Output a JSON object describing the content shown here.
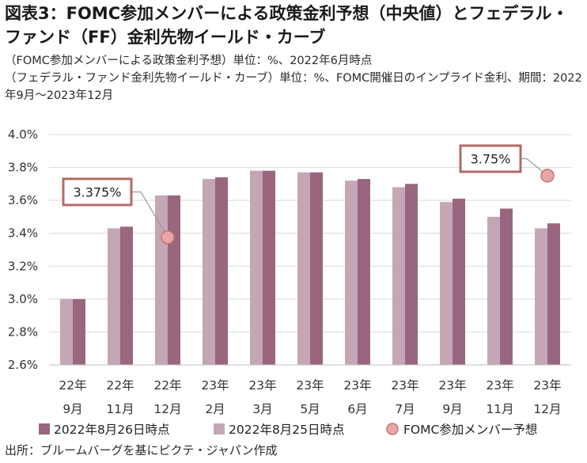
{
  "title": "図表3：FOMC参加メンバーによる政策金利予想（中央値）とフェデラル・ファンド（FF）金利先物イールド・カーブ",
  "subtitle_line1": "（FOMC参加メンバーによる政策金利予想）単位：%、2022年6月時点",
  "subtitle_line2": "（フェデラル・ファンド金利先物イールド・カーブ）単位：%、FOMC開催日のインプライド金利、期間：2022年9月～2023年12月",
  "source": "出所：ブルームバーグを基にピクテ・ジャパン作成",
  "colors": {
    "aug26": "#99667f",
    "aug25": "#c4a6b5",
    "fomc_dot_fill": "#e8a7a7",
    "fomc_dot_stroke": "#c27474",
    "callout_border": "#b56a6a",
    "grid": "#d9d9d9"
  },
  "chart_data": {
    "type": "bar",
    "ylim": [
      2.6,
      4.0
    ],
    "yticks": [
      "2.6%",
      "2.8%",
      "3.0%",
      "3.2%",
      "3.4%",
      "3.6%",
      "3.8%",
      "4.0%"
    ],
    "ytick_values": [
      2.6,
      2.8,
      3.0,
      3.2,
      3.4,
      3.6,
      3.8,
      4.0
    ],
    "grid": true,
    "legend_position": "bottom",
    "categories": [
      {
        "year": "22年",
        "month": "9月"
      },
      {
        "year": "22年",
        "month": "11月"
      },
      {
        "year": "22年",
        "month": "12月"
      },
      {
        "year": "23年",
        "month": "2月"
      },
      {
        "year": "23年",
        "month": "3月"
      },
      {
        "year": "23年",
        "month": "5月"
      },
      {
        "year": "23年",
        "month": "6月"
      },
      {
        "year": "23年",
        "month": "7月"
      },
      {
        "year": "23年",
        "month": "9月"
      },
      {
        "year": "23年",
        "month": "11月"
      },
      {
        "year": "23年",
        "month": "12月"
      }
    ],
    "series": [
      {
        "name": "2022年8月25日時点",
        "values": [
          3.0,
          3.43,
          3.63,
          3.73,
          3.78,
          3.77,
          3.72,
          3.68,
          3.59,
          3.5,
          3.43
        ]
      },
      {
        "name": "2022年8月26日時点",
        "values": [
          3.0,
          3.44,
          3.63,
          3.74,
          3.78,
          3.77,
          3.73,
          3.7,
          3.61,
          3.55,
          3.46
        ]
      }
    ],
    "fomc_projection": {
      "name": "FOMC参加メンバー予想",
      "points": [
        {
          "category_index": 2,
          "value": 3.375,
          "label": "3.375%"
        },
        {
          "category_index": 10,
          "value": 3.75,
          "label": "3.75%"
        }
      ]
    },
    "legend_order": [
      "2022年8月26日時点",
      "2022年8月25日時点",
      "FOMC参加メンバー予想"
    ]
  }
}
